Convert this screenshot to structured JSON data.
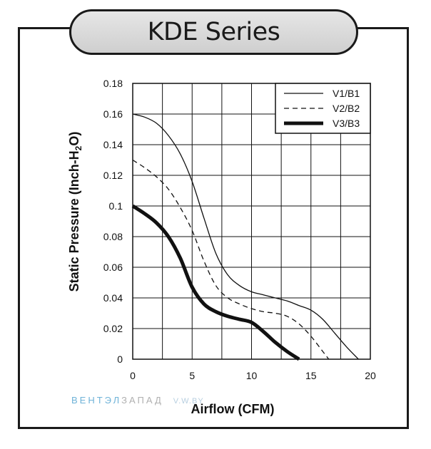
{
  "header": {
    "title": "KDE Series"
  },
  "watermark": {
    "part1": "ВЕНТЭЛ",
    "part2": "ЗАПАД",
    "part3": "V.W.BY"
  },
  "chart_data": {
    "type": "line",
    "title": "",
    "xlabel": "Airflow (CFM)",
    "ylabel_main": "Static Pressure (Inch-H",
    "ylabel_sub": "2",
    "ylabel_tail": "O)",
    "xlim": [
      0,
      20
    ],
    "ylim": [
      0,
      0.18
    ],
    "x_ticks": [
      0,
      5,
      10,
      15,
      20
    ],
    "x_tick_labels": [
      "0",
      "5",
      "10",
      "15",
      "20"
    ],
    "y_ticks": [
      0,
      0.02,
      0.04,
      0.06,
      0.08,
      0.1,
      0.12,
      0.14,
      0.16,
      0.18
    ],
    "y_tick_labels": [
      "0",
      "0.02",
      "0.04",
      "0.06",
      "0.08",
      "0.1",
      "0.12",
      "0.14",
      "0.16",
      "0.18"
    ],
    "x_grid": [
      0,
      2.5,
      5,
      7.5,
      10,
      12.5,
      15,
      17.5,
      20
    ],
    "y_grid": [
      0,
      0.02,
      0.04,
      0.06,
      0.08,
      0.1,
      0.12,
      0.14,
      0.16,
      0.18
    ],
    "grid": true,
    "legend_position": "top-right",
    "series": [
      {
        "name": "V1/B1",
        "style": "solid-thin",
        "color": "#111111",
        "points": [
          [
            0,
            0.16
          ],
          [
            1,
            0.158
          ],
          [
            2,
            0.154
          ],
          [
            3,
            0.146
          ],
          [
            4,
            0.134
          ],
          [
            5,
            0.116
          ],
          [
            6,
            0.092
          ],
          [
            7,
            0.069
          ],
          [
            8,
            0.055
          ],
          [
            9,
            0.048
          ],
          [
            10,
            0.044
          ],
          [
            11,
            0.042
          ],
          [
            12,
            0.04
          ],
          [
            13,
            0.038
          ],
          [
            14,
            0.035
          ],
          [
            15,
            0.032
          ],
          [
            16,
            0.026
          ],
          [
            17,
            0.017
          ],
          [
            18,
            0.008
          ],
          [
            19,
            0.0
          ]
        ]
      },
      {
        "name": "V2/B2",
        "style": "dashed",
        "color": "#111111",
        "points": [
          [
            0,
            0.13
          ],
          [
            1,
            0.125
          ],
          [
            2,
            0.119
          ],
          [
            3,
            0.111
          ],
          [
            4,
            0.099
          ],
          [
            5,
            0.084
          ],
          [
            6,
            0.064
          ],
          [
            7,
            0.048
          ],
          [
            8,
            0.04
          ],
          [
            9,
            0.036
          ],
          [
            10,
            0.033
          ],
          [
            11,
            0.031
          ],
          [
            12,
            0.03
          ],
          [
            13,
            0.028
          ],
          [
            14,
            0.023
          ],
          [
            15,
            0.015
          ],
          [
            16,
            0.005
          ],
          [
            16.5,
            0.0
          ]
        ]
      },
      {
        "name": "V3/B3",
        "style": "solid-thick",
        "color": "#111111",
        "points": [
          [
            0,
            0.1
          ],
          [
            1,
            0.095
          ],
          [
            2,
            0.089
          ],
          [
            3,
            0.08
          ],
          [
            4,
            0.066
          ],
          [
            5,
            0.047
          ],
          [
            6,
            0.036
          ],
          [
            7,
            0.031
          ],
          [
            8,
            0.028
          ],
          [
            9,
            0.026
          ],
          [
            10,
            0.024
          ],
          [
            11,
            0.018
          ],
          [
            12,
            0.011
          ],
          [
            13,
            0.005
          ],
          [
            14,
            0.0
          ]
        ]
      }
    ]
  }
}
